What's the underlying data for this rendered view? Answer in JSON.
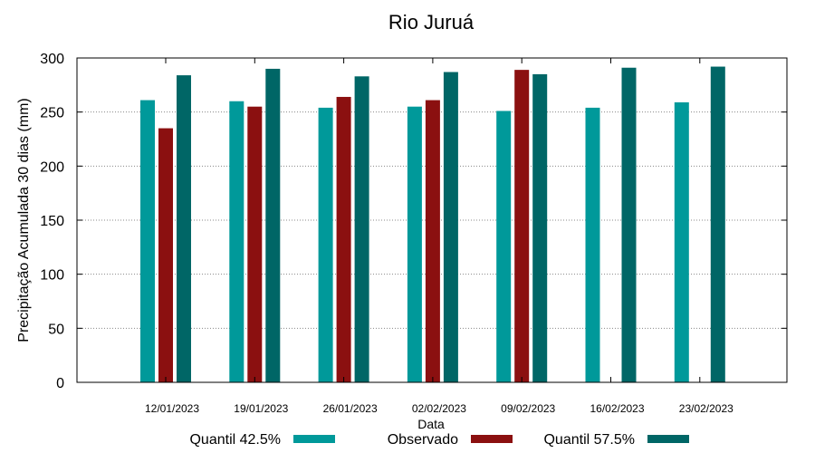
{
  "chart_data": {
    "type": "bar",
    "title": "Rio Juruá",
    "xlabel": "Data",
    "ylabel": "Precipitação Acumulada 30 dias (mm)",
    "ylim": [
      0,
      300
    ],
    "yticks": [
      0,
      50,
      100,
      150,
      200,
      250,
      300
    ],
    "grid": true,
    "legend_position": "bottom",
    "categories": [
      "12/01/2023",
      "19/01/2023",
      "26/01/2023",
      "02/02/2023",
      "09/02/2023",
      "16/02/2023",
      "23/02/2023"
    ],
    "series": [
      {
        "name": "Quantil 42.5%",
        "color": "#00999a",
        "values": [
          261,
          260,
          254,
          255,
          251,
          254,
          259
        ]
      },
      {
        "name": "Observado",
        "color": "#8b1010",
        "values": [
          235,
          255,
          264,
          261,
          289,
          null,
          null
        ]
      },
      {
        "name": "Quantil 57.5%",
        "color": "#006666",
        "values": [
          284,
          290,
          283,
          287,
          285,
          291,
          292
        ]
      }
    ]
  }
}
